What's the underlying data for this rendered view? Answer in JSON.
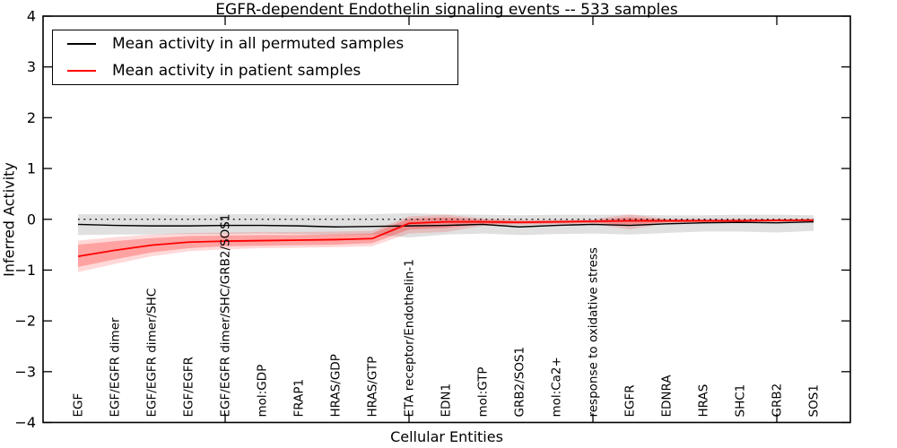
{
  "chart_data": {
    "type": "line",
    "title": "EGFR-dependent Endothelin signaling events -- 533 samples",
    "axes": {
      "x_label": "Cellular Entities",
      "y_label": "Inferred Activity",
      "ylim": [
        -4,
        4
      ],
      "y_ticks": [
        -4,
        -3,
        -2,
        -1,
        0,
        1,
        2,
        3,
        4
      ],
      "x_major_tick_positions": [
        5,
        10,
        15,
        20
      ],
      "grid": false,
      "zero_reference_line": {
        "y": 0,
        "style": "dotted",
        "color": "#000000"
      }
    },
    "categories": [
      "EGF",
      "EGF/EGFR dimer",
      "EGF/EGFR dimer/SHC",
      "EGF/EGFR",
      "EGF/EGFR dimer/SHC/GRB2/SOS1",
      "mol:GDP",
      "FRAP1",
      "HRAS/GDP",
      "HRAS/GTP",
      "ETA receptor/Endothelin-1",
      "EDN1",
      "mol:GTP",
      "GRB2/SOS1",
      "mol:Ca2+",
      "response to oxidative stress",
      "EGFR",
      "EDNRA",
      "HRAS",
      "SHC1",
      "GRB2",
      "SOS1"
    ],
    "legend": [
      {
        "label": "Mean activity in all permuted samples",
        "color": "#000000"
      },
      {
        "label": "Mean activity in patient samples",
        "color": "#ff0000"
      }
    ],
    "series": [
      {
        "name": "Mean activity in all permuted samples",
        "color": "#000000",
        "width": 1.4,
        "values": [
          -0.1,
          -0.12,
          -0.13,
          -0.13,
          -0.12,
          -0.12,
          -0.13,
          -0.15,
          -0.14,
          -0.13,
          -0.12,
          -0.1,
          -0.15,
          -0.12,
          -0.1,
          -0.12,
          -0.09,
          -0.07,
          -0.06,
          -0.07,
          -0.05
        ]
      },
      {
        "name": "Mean activity in patient samples",
        "color": "#ff0000",
        "width": 1.8,
        "values": [
          -0.73,
          -0.61,
          -0.51,
          -0.45,
          -0.43,
          -0.42,
          -0.41,
          -0.4,
          -0.38,
          -0.08,
          -0.05,
          -0.05,
          -0.06,
          -0.05,
          -0.04,
          -0.03,
          -0.03,
          -0.03,
          -0.03,
          -0.02,
          -0.02
        ]
      }
    ],
    "bands": [
      {
        "name": "permuted-samples-range",
        "color": "#000000",
        "opacity": 0.12,
        "upper": [
          0.1,
          0.1,
          0.1,
          0.09,
          0.1,
          0.1,
          0.09,
          0.09,
          0.1,
          0.12,
          0.1,
          0.09,
          0.08,
          0.09,
          0.09,
          0.09,
          0.08,
          0.08,
          0.09,
          0.09,
          0.08
        ],
        "lower": [
          -0.31,
          -0.3,
          -0.3,
          -0.29,
          -0.29,
          -0.28,
          -0.29,
          -0.31,
          -0.3,
          -0.36,
          -0.3,
          -0.28,
          -0.31,
          -0.29,
          -0.28,
          -0.3,
          -0.27,
          -0.24,
          -0.24,
          -0.26,
          -0.23
        ]
      },
      {
        "name": "patient-samples-outer-range",
        "color": "#ff0000",
        "opacity": 0.15,
        "upper": [
          -0.42,
          -0.35,
          -0.3,
          -0.27,
          -0.26,
          -0.25,
          -0.25,
          -0.24,
          -0.23,
          0.06,
          0.09,
          0.02,
          -0.01,
          -0.01,
          0.0,
          0.1,
          0.01,
          0.01,
          0.01,
          0.01,
          0.02
        ],
        "lower": [
          -1.04,
          -0.88,
          -0.73,
          -0.63,
          -0.59,
          -0.57,
          -0.56,
          -0.55,
          -0.53,
          -0.28,
          -0.25,
          -0.13,
          -0.11,
          -0.1,
          -0.09,
          -0.2,
          -0.08,
          -0.07,
          -0.07,
          -0.06,
          -0.06
        ]
      },
      {
        "name": "patient-samples-inner-range",
        "color": "#ff0000",
        "opacity": 0.25,
        "upper": [
          -0.5,
          -0.43,
          -0.37,
          -0.33,
          -0.32,
          -0.31,
          -0.31,
          -0.3,
          -0.28,
          0.01,
          0.04,
          -0.01,
          -0.03,
          -0.03,
          -0.02,
          0.04,
          -0.01,
          -0.01,
          -0.01,
          -0.01,
          0.0
        ],
        "lower": [
          -0.94,
          -0.79,
          -0.65,
          -0.57,
          -0.53,
          -0.52,
          -0.51,
          -0.5,
          -0.47,
          -0.2,
          -0.17,
          -0.1,
          -0.09,
          -0.08,
          -0.07,
          -0.12,
          -0.06,
          -0.05,
          -0.05,
          -0.04,
          -0.04
        ]
      }
    ]
  }
}
